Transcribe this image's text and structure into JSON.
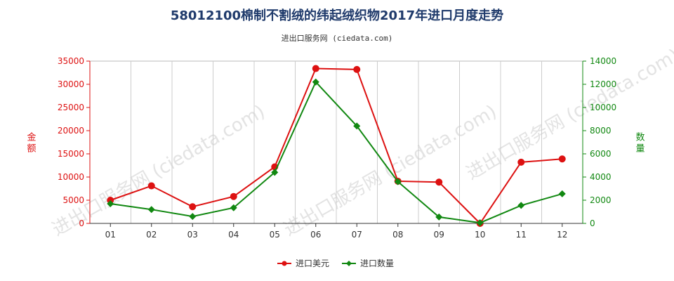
{
  "title": "58012100棉制不割绒的纬起绒织物2017年进口月度走势",
  "subtitle": "进出口服务网 (ciedata.com)",
  "watermark": "进出口服务网 (ciedata.com)",
  "colors": {
    "amount": "#dd1111",
    "quantity": "#118811",
    "grid": "#cccccc",
    "title": "#1f3a6b"
  },
  "chart_data": {
    "type": "line",
    "categories": [
      "01",
      "02",
      "03",
      "04",
      "05",
      "06",
      "07",
      "08",
      "09",
      "10",
      "11",
      "12"
    ],
    "y_left": {
      "label": "金额",
      "ylim": [
        0,
        35000
      ],
      "ticks": [
        "0",
        "5000",
        "10000",
        "15000",
        "20000",
        "25000",
        "30000",
        "35000"
      ]
    },
    "y_right": {
      "label": "数量",
      "ylim": [
        0,
        14000
      ],
      "ticks": [
        "0",
        "2000",
        "4000",
        "6000",
        "8000",
        "10000",
        "12000",
        "14000"
      ]
    },
    "series": [
      {
        "name": "进口美元",
        "axis": "left",
        "marker": "circle",
        "values": [
          5000,
          8100,
          3600,
          5800,
          12200,
          33400,
          33200,
          9100,
          8900,
          0,
          13200,
          13900
        ]
      },
      {
        "name": "进口数量",
        "axis": "right",
        "marker": "diamond",
        "values": [
          1700,
          1200,
          600,
          1350,
          4400,
          12200,
          8400,
          3600,
          550,
          50,
          1550,
          2550
        ]
      }
    ],
    "grid": "vertical",
    "legend_position": "bottom-center"
  }
}
